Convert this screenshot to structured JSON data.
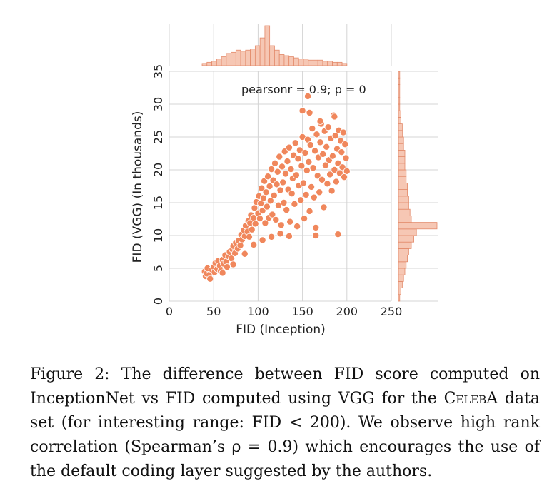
{
  "chart_data": {
    "type": "scatter",
    "subtype": "jointplot",
    "xlabel": "FID (Inception)",
    "ylabel": "FID (VGG) (In thousands)",
    "xlim": [
      0,
      250
    ],
    "ylim": [
      0,
      35
    ],
    "xticks": [
      "0",
      "50",
      "100",
      "150",
      "200",
      "250"
    ],
    "yticks": [
      "0",
      "5",
      "10",
      "15",
      "20",
      "25",
      "30",
      "35"
    ],
    "annotation": "pearsonr = 0.9; p = 0",
    "grid": true,
    "marker_color": "#f0875c",
    "marker_edge": "#ffffff",
    "hist_fill": "#f6c7b4",
    "hist_edge": "#e38a6a",
    "points": [
      [
        40,
        4.5
      ],
      [
        41,
        3.8
      ],
      [
        42,
        4.2
      ],
      [
        43,
        5.0
      ],
      [
        45,
        4.0
      ],
      [
        46,
        3.4
      ],
      [
        48,
        4.8
      ],
      [
        50,
        5.2
      ],
      [
        51,
        4.4
      ],
      [
        52,
        5.8
      ],
      [
        54,
        4.9
      ],
      [
        55,
        6.1
      ],
      [
        57,
        5.4
      ],
      [
        58,
        4.6
      ],
      [
        60,
        6.3
      ],
      [
        61,
        5.7
      ],
      [
        63,
        7.0
      ],
      [
        64,
        6.0
      ],
      [
        65,
        5.2
      ],
      [
        67,
        6.8
      ],
      [
        68,
        7.5
      ],
      [
        70,
        6.5
      ],
      [
        71,
        7.9
      ],
      [
        72,
        8.4
      ],
      [
        74,
        7.3
      ],
      [
        75,
        8.9
      ],
      [
        77,
        8.0
      ],
      [
        78,
        9.2
      ],
      [
        80,
        8.5
      ],
      [
        81,
        10.1
      ],
      [
        82,
        9.4
      ],
      [
        84,
        10.8
      ],
      [
        85,
        9.9
      ],
      [
        86,
        11.5
      ],
      [
        88,
        10.6
      ],
      [
        89,
        12.2
      ],
      [
        90,
        9.8
      ],
      [
        91,
        11.9
      ],
      [
        92,
        13.1
      ],
      [
        93,
        10.9
      ],
      [
        95,
        12.7
      ],
      [
        96,
        14.2
      ],
      [
        97,
        11.8
      ],
      [
        98,
        15.1
      ],
      [
        100,
        13.4
      ],
      [
        101,
        16.0
      ],
      [
        102,
        12.6
      ],
      [
        103,
        14.9
      ],
      [
        104,
        17.2
      ],
      [
        105,
        13.8
      ],
      [
        106,
        15.7
      ],
      [
        107,
        18.3
      ],
      [
        108,
        11.9
      ],
      [
        109,
        16.6
      ],
      [
        110,
        14.4
      ],
      [
        111,
        19.0
      ],
      [
        112,
        12.7
      ],
      [
        113,
        17.5
      ],
      [
        114,
        15.3
      ],
      [
        115,
        20.1
      ],
      [
        116,
        13.2
      ],
      [
        117,
        18.4
      ],
      [
        118,
        16.1
      ],
      [
        119,
        21.0
      ],
      [
        120,
        12.4
      ],
      [
        121,
        17.8
      ],
      [
        122,
        19.7
      ],
      [
        123,
        14.6
      ],
      [
        124,
        22.0
      ],
      [
        125,
        16.9
      ],
      [
        126,
        11.6
      ],
      [
        127,
        20.5
      ],
      [
        128,
        18.1
      ],
      [
        129,
        15.0
      ],
      [
        130,
        22.8
      ],
      [
        131,
        19.4
      ],
      [
        132,
        13.9
      ],
      [
        133,
        21.3
      ],
      [
        134,
        17.0
      ],
      [
        135,
        23.4
      ],
      [
        136,
        12.1
      ],
      [
        137,
        20.1
      ],
      [
        138,
        16.4
      ],
      [
        139,
        18.7
      ],
      [
        140,
        22.2
      ],
      [
        141,
        14.8
      ],
      [
        142,
        24.1
      ],
      [
        143,
        19.2
      ],
      [
        144,
        11.4
      ],
      [
        145,
        21.7
      ],
      [
        146,
        17.6
      ],
      [
        147,
        23.0
      ],
      [
        148,
        15.4
      ],
      [
        149,
        20.6
      ],
      [
        150,
        25.0
      ],
      [
        151,
        18.0
      ],
      [
        152,
        12.6
      ],
      [
        153,
        22.6
      ],
      [
        154,
        16.2
      ],
      [
        155,
        19.9
      ],
      [
        156,
        24.6
      ],
      [
        157,
        21.2
      ],
      [
        158,
        13.7
      ],
      [
        159,
        23.8
      ],
      [
        160,
        17.4
      ],
      [
        161,
        26.3
      ],
      [
        162,
        20.3
      ],
      [
        163,
        15.8
      ],
      [
        164,
        22.9
      ],
      [
        165,
        11.2
      ],
      [
        166,
        25.4
      ],
      [
        167,
        19.1
      ],
      [
        168,
        21.9
      ],
      [
        169,
        16.6
      ],
      [
        170,
        24.2
      ],
      [
        171,
        27.0
      ],
      [
        172,
        18.5
      ],
      [
        173,
        22.4
      ],
      [
        174,
        14.3
      ],
      [
        175,
        25.9
      ],
      [
        176,
        20.7
      ],
      [
        177,
        23.5
      ],
      [
        178,
        17.9
      ],
      [
        179,
        26.5
      ],
      [
        180,
        21.5
      ],
      [
        181,
        19.3
      ],
      [
        182,
        24.8
      ],
      [
        183,
        16.8
      ],
      [
        184,
        22.1
      ],
      [
        185,
        28.3
      ],
      [
        186,
        20.0
      ],
      [
        187,
        25.2
      ],
      [
        188,
        18.2
      ],
      [
        189,
        23.2
      ],
      [
        190,
        21.0
      ],
      [
        191,
        26.0
      ],
      [
        192,
        19.5
      ],
      [
        193,
        24.4
      ],
      [
        194,
        22.7
      ],
      [
        195,
        20.4
      ],
      [
        196,
        25.7
      ],
      [
        197,
        18.9
      ],
      [
        198,
        23.9
      ],
      [
        199,
        21.8
      ],
      [
        200,
        19.8
      ],
      [
        156,
        31.2
      ],
      [
        150,
        29.0
      ],
      [
        186,
        28.1
      ],
      [
        170,
        27.4
      ],
      [
        158,
        28.7
      ],
      [
        165,
        10.0
      ],
      [
        190,
        10.2
      ],
      [
        60,
        4.3
      ],
      [
        72,
        5.6
      ],
      [
        85,
        7.2
      ],
      [
        95,
        8.6
      ],
      [
        105,
        9.3
      ],
      [
        115,
        9.8
      ],
      [
        125,
        10.3
      ],
      [
        135,
        9.9
      ]
    ],
    "x_hist_counts": [
      2,
      3,
      4,
      6,
      8,
      11,
      12,
      14,
      13,
      14,
      15,
      18,
      25,
      36,
      18,
      14,
      10,
      9,
      8,
      7,
      6,
      6,
      5,
      5,
      5,
      4,
      4,
      3,
      3,
      2
    ],
    "y_hist_counts": [
      1,
      2,
      3,
      4,
      5,
      6,
      7,
      8,
      10,
      12,
      14,
      30,
      10,
      9,
      8,
      8,
      7,
      7,
      6,
      6,
      5,
      5,
      5,
      4,
      4,
      3,
      3,
      2,
      2,
      1,
      1,
      1,
      1,
      1,
      1
    ]
  },
  "caption": {
    "figure_label": "Figure 2:",
    "text_part1": " The difference between FID score computed on InceptionNet vs FID computed using VGG for the ",
    "dataset_name": "CelebA",
    "text_part2": " data set (for interesting range: FID < 200). We observe high rank correlation (Spearman’s ρ = 0.9) which encourages the use of the default coding layer suggested by the authors."
  }
}
